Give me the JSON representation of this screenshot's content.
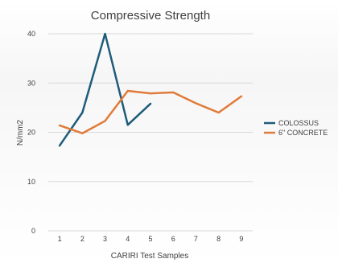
{
  "chart_data": {
    "type": "line",
    "title": "Compressive Strength",
    "xlabel": "CARIRI Test Samples",
    "ylabel": "N/mm2",
    "x": [
      1,
      2,
      3,
      4,
      5,
      6,
      7,
      8,
      9
    ],
    "ylim": [
      0,
      40
    ],
    "yticks": [
      0,
      10,
      20,
      30,
      40
    ],
    "grid": true,
    "legend_position": "right",
    "series": [
      {
        "name": "COLOSSUS",
        "color": "#1f5c7a",
        "values": [
          17.3,
          24.0,
          40.0,
          21.5,
          25.8,
          null,
          null,
          null,
          null
        ]
      },
      {
        "name": "6\" CONCRETE",
        "color": "#e07b39",
        "values": [
          21.4,
          19.8,
          22.3,
          28.4,
          27.9,
          28.1,
          25.9,
          24.0,
          27.3
        ]
      }
    ]
  }
}
